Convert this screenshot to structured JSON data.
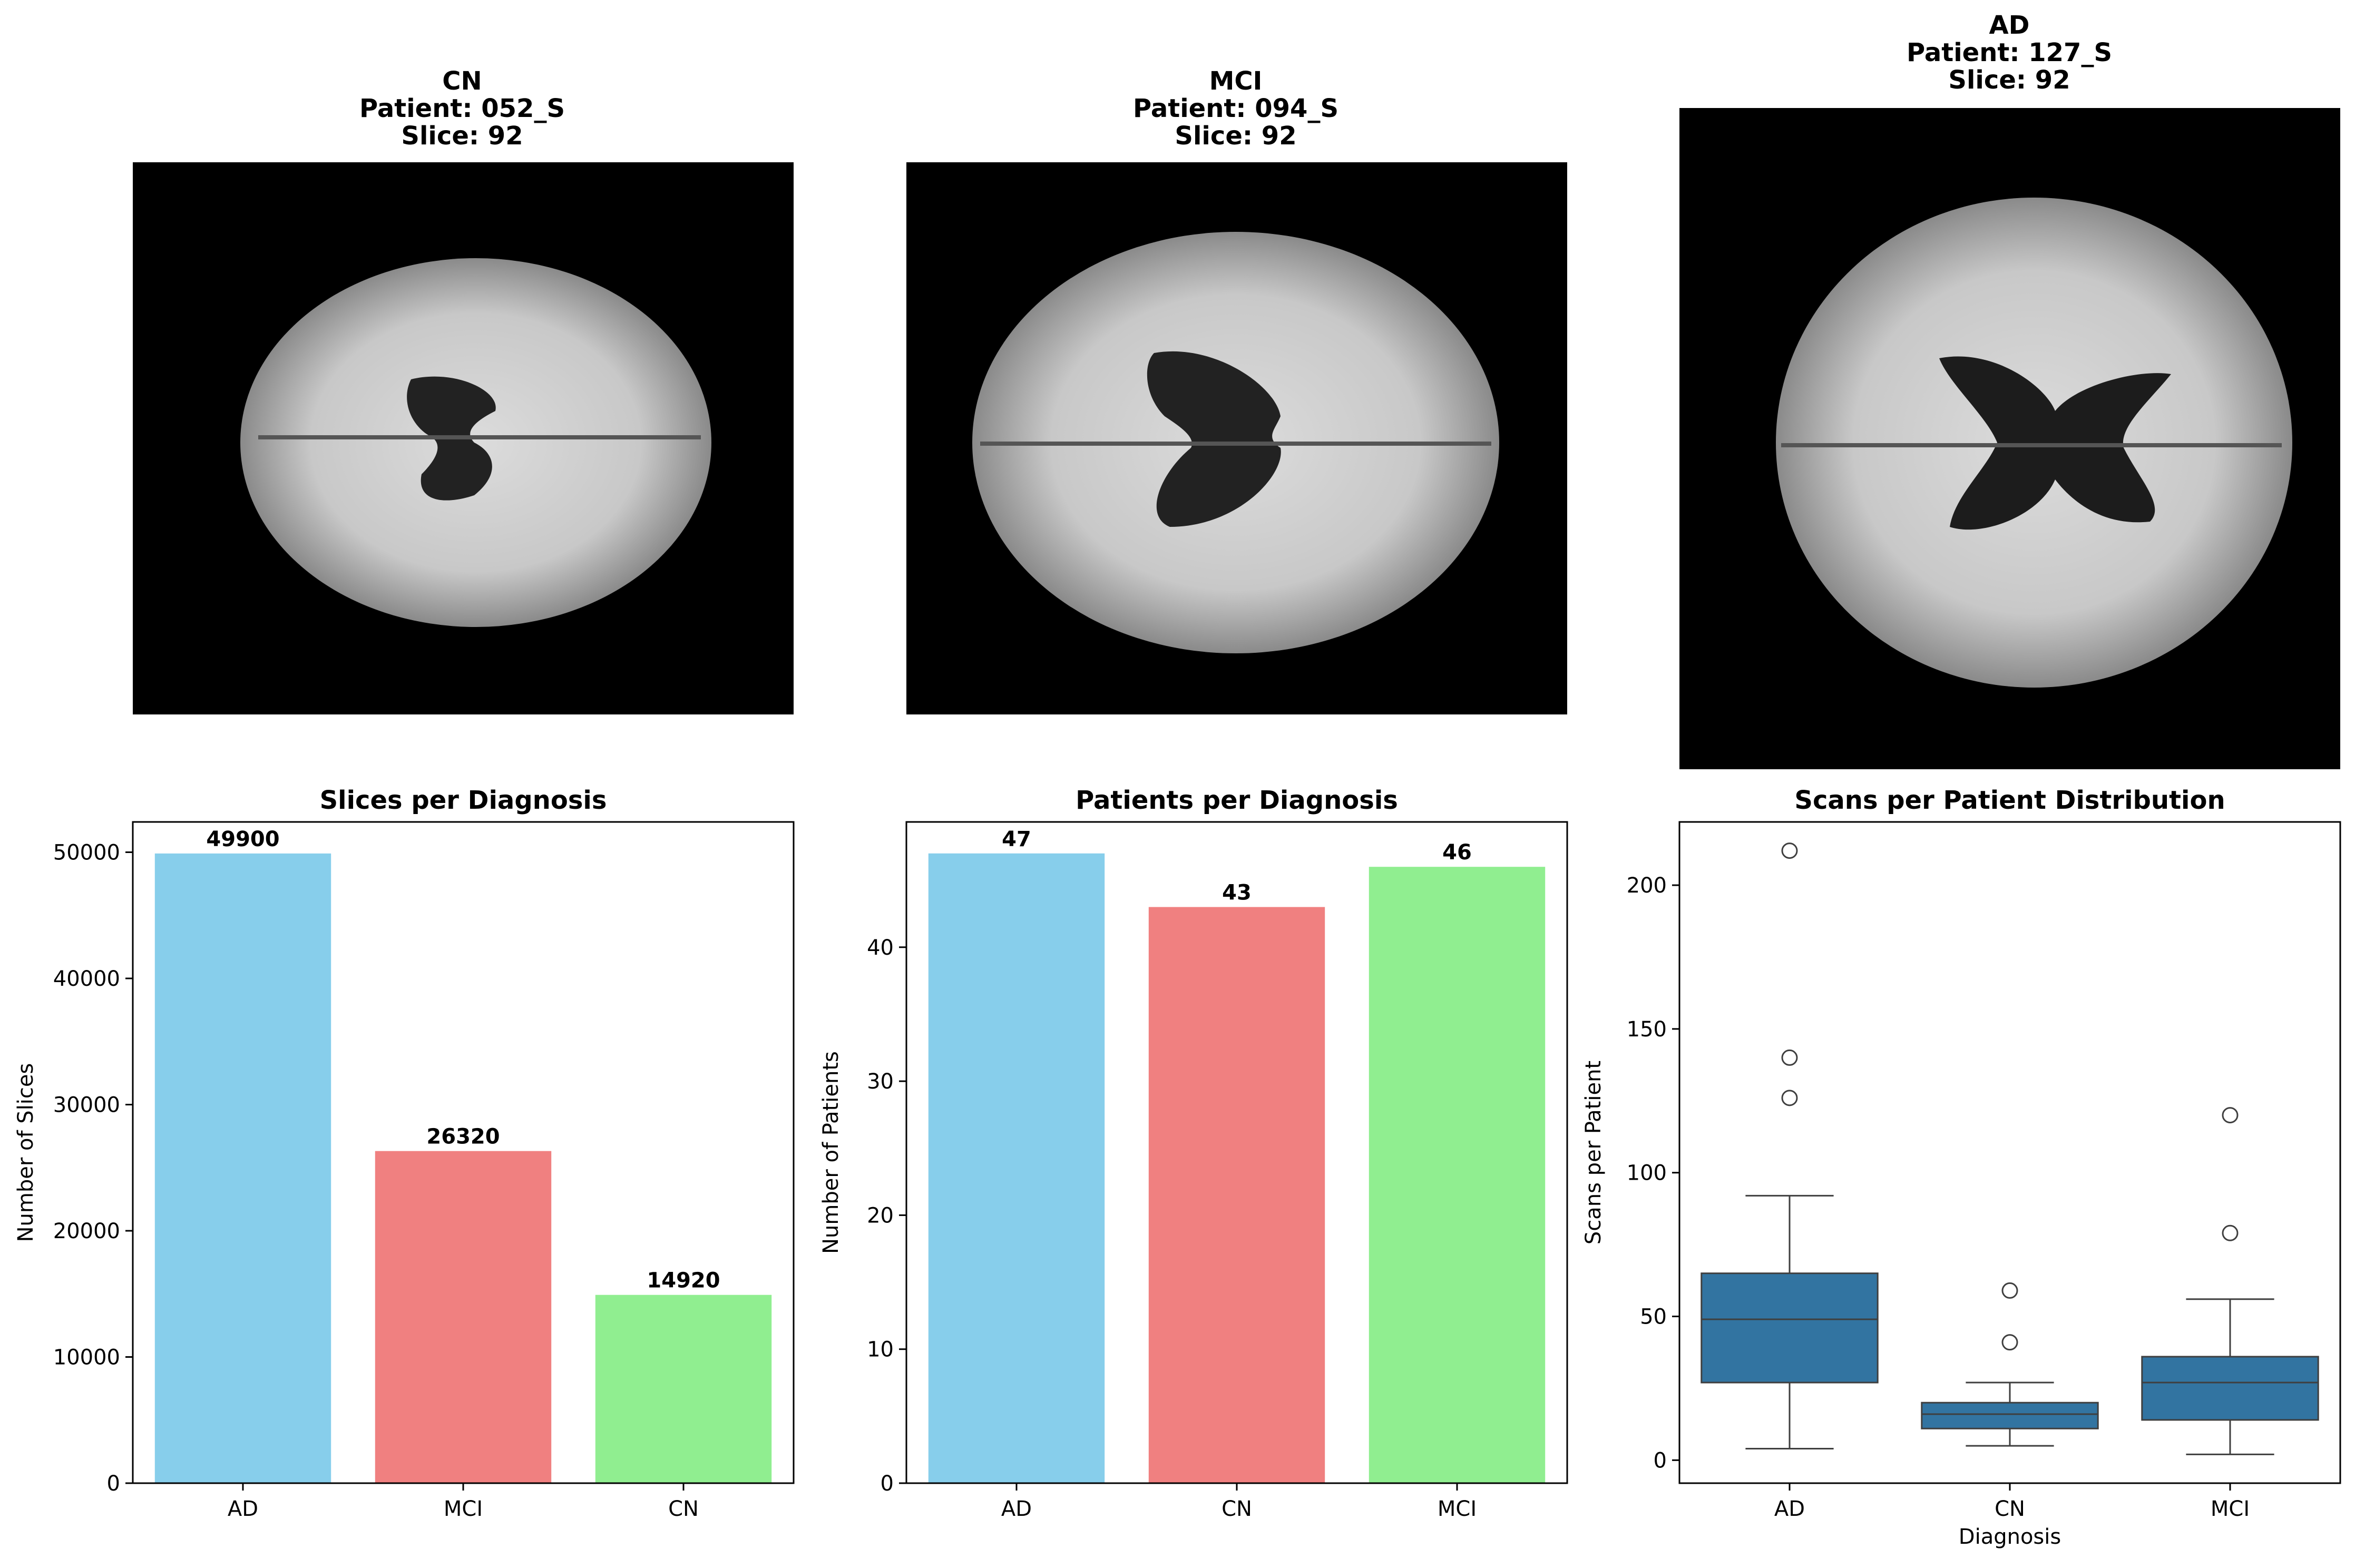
{
  "colors": {
    "ad_bar": "#87CEEB",
    "mci_bar": "#F08080",
    "cn_bar": "#90EE90",
    "box_fill": "#3274A1"
  },
  "panels": [
    {
      "title_lines": [
        "CN",
        "Patient: 052_S",
        "Slice: 92"
      ],
      "image": "axial brain MRI slice"
    },
    {
      "title_lines": [
        "MCI",
        "Patient: 094_S",
        "Slice: 92"
      ],
      "image": "axial brain MRI slice"
    },
    {
      "title_lines": [
        "AD",
        "Patient: 127_S",
        "Slice: 92"
      ],
      "image": "axial brain MRI slice"
    }
  ],
  "chart_data": [
    {
      "type": "bar",
      "title": "Slices per Diagnosis",
      "xlabel": "",
      "ylabel": "Number of Slices",
      "categories": [
        "AD",
        "MCI",
        "CN"
      ],
      "values": [
        49900,
        26320,
        14920
      ],
      "colors": [
        "#87CEEB",
        "#F08080",
        "#90EE90"
      ],
      "ylim": [
        0,
        52400
      ],
      "yticks": [
        0,
        10000,
        20000,
        30000,
        40000,
        50000
      ],
      "data_labels": true,
      "grid": false
    },
    {
      "type": "bar",
      "title": "Patients per Diagnosis",
      "xlabel": "",
      "ylabel": "Number of Patients",
      "categories": [
        "AD",
        "CN",
        "MCI"
      ],
      "values": [
        47,
        43,
        46
      ],
      "colors": [
        "#87CEEB",
        "#F08080",
        "#90EE90"
      ],
      "ylim": [
        0,
        49.35
      ],
      "yticks": [
        0,
        10,
        20,
        30,
        40
      ],
      "data_labels": true,
      "grid": false
    },
    {
      "type": "box",
      "title": "Scans per Patient Distribution",
      "xlabel": "Diagnosis",
      "ylabel": "Scans per Patient",
      "categories": [
        "AD",
        "CN",
        "MCI"
      ],
      "boxes": [
        {
          "whisker_low": 4,
          "q1": 27,
          "median": 49,
          "q3": 65,
          "whisker_high": 92,
          "outliers": [
            126,
            140,
            212
          ]
        },
        {
          "whisker_low": 5,
          "q1": 11,
          "median": 16,
          "q3": 20,
          "whisker_high": 27,
          "outliers": [
            41,
            59
          ]
        },
        {
          "whisker_low": 2,
          "q1": 14,
          "median": 27,
          "q3": 36,
          "whisker_high": 56,
          "outliers": [
            79,
            120
          ]
        }
      ],
      "ylim": [
        -8,
        222
      ],
      "yticks": [
        0,
        50,
        100,
        150,
        200
      ],
      "grid": false
    }
  ]
}
